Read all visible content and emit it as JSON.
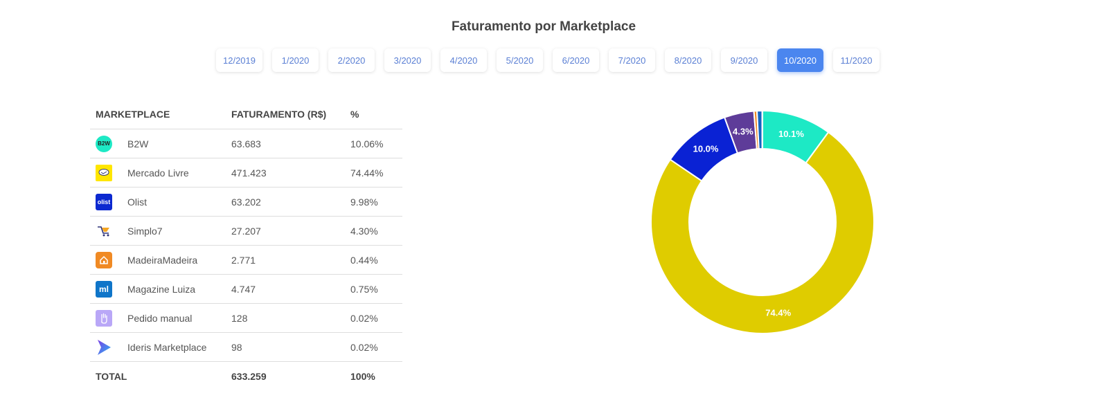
{
  "title": "Faturamento por Marketplace",
  "months": [
    {
      "label": "12/2019",
      "active": false
    },
    {
      "label": "1/2020",
      "active": false
    },
    {
      "label": "2/2020",
      "active": false
    },
    {
      "label": "3/2020",
      "active": false
    },
    {
      "label": "4/2020",
      "active": false
    },
    {
      "label": "5/2020",
      "active": false
    },
    {
      "label": "6/2020",
      "active": false
    },
    {
      "label": "7/2020",
      "active": false
    },
    {
      "label": "8/2020",
      "active": false
    },
    {
      "label": "9/2020",
      "active": false
    },
    {
      "label": "10/2020",
      "active": true
    },
    {
      "label": "11/2020",
      "active": false
    }
  ],
  "table": {
    "headers": {
      "marketplace": "MARKETPLACE",
      "faturamento": "FATURAMENTO (R$)",
      "percent": "%"
    },
    "rows": [
      {
        "name": "B2W",
        "value": "63.683",
        "percent": "10.06%",
        "icon": "b2w-logo-icon"
      },
      {
        "name": "Mercado Livre",
        "value": "471.423",
        "percent": "74.44%",
        "icon": "mercado-livre-logo-icon"
      },
      {
        "name": "Olist",
        "value": "63.202",
        "percent": "9.98%",
        "icon": "olist-logo-icon"
      },
      {
        "name": "Simplo7",
        "value": "27.207",
        "percent": "4.30%",
        "icon": "simplo7-logo-icon"
      },
      {
        "name": "MadeiraMadeira",
        "value": "2.771",
        "percent": "0.44%",
        "icon": "madeiramadeira-logo-icon"
      },
      {
        "name": "Magazine Luiza",
        "value": "4.747",
        "percent": "0.75%",
        "icon": "magazine-luiza-logo-icon"
      },
      {
        "name": "Pedido manual",
        "value": "128",
        "percent": "0.02%",
        "icon": "hand-icon"
      },
      {
        "name": "Ideris Marketplace",
        "value": "98",
        "percent": "0.02%",
        "icon": "ideris-logo-icon"
      }
    ],
    "total": {
      "label": "TOTAL",
      "value": "633.259",
      "percent": "100%"
    }
  },
  "logo_text": {
    "b2w": "B2W",
    "olist": "olist",
    "magalu": "ml"
  },
  "chart_data": {
    "type": "pie",
    "donut": true,
    "slices": [
      {
        "name": "B2W",
        "value": 10.06,
        "label": "10.1%",
        "color": "#1de9c5"
      },
      {
        "name": "Mercado Livre",
        "value": 74.44,
        "label": "74.4%",
        "color": "#dfcc00"
      },
      {
        "name": "Olist",
        "value": 9.98,
        "label": "10.0%",
        "color": "#0a22d4"
      },
      {
        "name": "Simplo7",
        "value": 4.3,
        "label": "4.3%",
        "color": "#5e3c99"
      },
      {
        "name": "MadeiraMadeira",
        "value": 0.44,
        "label": "",
        "color": "#f08a24"
      },
      {
        "name": "Magazine Luiza",
        "value": 0.75,
        "label": "",
        "color": "#1565c0"
      },
      {
        "name": "Pedido manual",
        "value": 0.02,
        "label": "",
        "color": "#a78bfa"
      },
      {
        "name": "Ideris Marketplace",
        "value": 0.02,
        "label": "",
        "color": "#6c63ff"
      }
    ]
  }
}
